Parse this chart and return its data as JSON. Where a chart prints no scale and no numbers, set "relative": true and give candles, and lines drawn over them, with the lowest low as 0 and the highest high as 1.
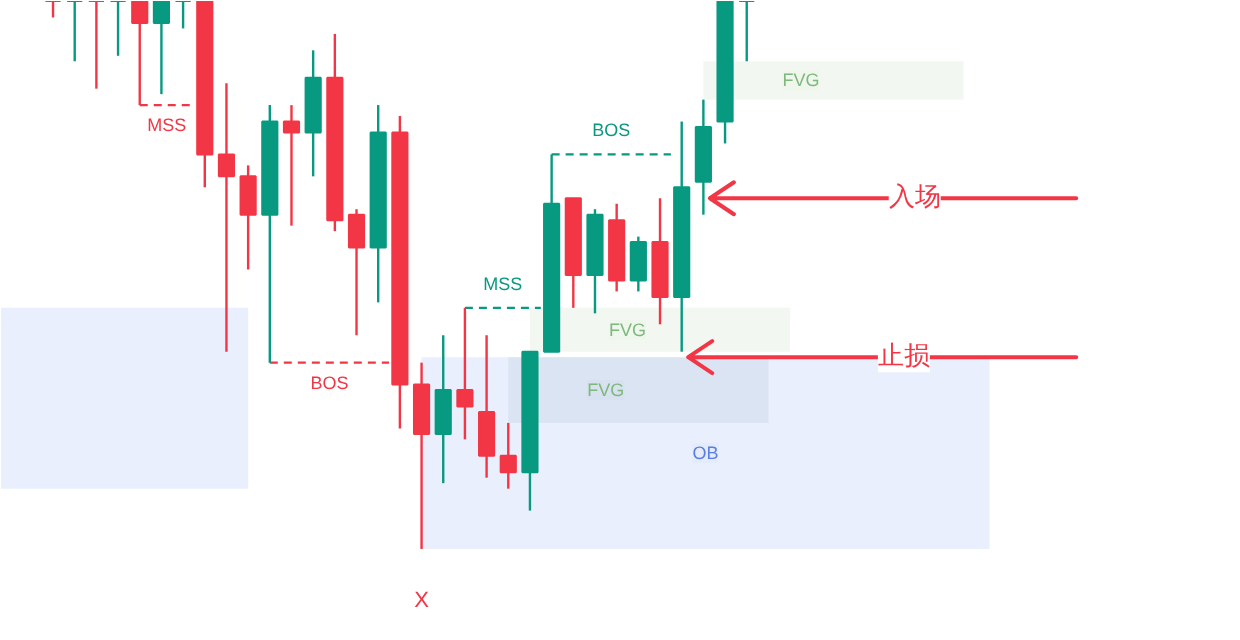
{
  "chart_data": {
    "type": "candlestick",
    "relative": true,
    "grid": false,
    "categories": [
      null,
      null,
      null,
      null,
      null,
      null,
      null,
      null,
      null,
      null,
      null,
      null,
      null,
      null,
      null,
      null,
      null,
      null,
      null,
      null,
      null,
      null,
      null,
      null,
      null,
      null,
      null,
      null,
      null,
      null,
      null,
      null,
      null
    ],
    "ohlc": [
      [
        1,
        1,
        0.97,
        1
      ],
      [
        1,
        1,
        0.89,
        1
      ],
      [
        1,
        1,
        0.84,
        1
      ],
      [
        1,
        1,
        0.9,
        1
      ],
      [
        1,
        1,
        0.81,
        0.96
      ],
      [
        0.96,
        1,
        0.83,
        1
      ],
      [
        1,
        1,
        0.95,
        1
      ],
      [
        1,
        1,
        0.66,
        0.72
      ],
      [
        0.72,
        0.85,
        0.36,
        0.68
      ],
      [
        0.68,
        0.7,
        0.51,
        0.61
      ],
      [
        0.61,
        0.81,
        0.34,
        0.78
      ],
      [
        0.78,
        0.81,
        0.59,
        0.76
      ],
      [
        0.76,
        0.91,
        0.68,
        0.86
      ],
      [
        0.86,
        0.94,
        0.58,
        0.6
      ],
      [
        0.61,
        0.62,
        0.39,
        0.55
      ],
      [
        0.55,
        0.81,
        0.45,
        0.76
      ],
      [
        0.76,
        0.79,
        0.22,
        0.3
      ],
      [
        0.3,
        0.34,
        0,
        0.21
      ],
      [
        0.21,
        0.39,
        0.12,
        0.29
      ],
      [
        0.29,
        0.44,
        0.2,
        0.26
      ],
      [
        0.25,
        0.39,
        0.13,
        0.17
      ],
      [
        0.17,
        0.23,
        0.11,
        0.14
      ],
      [
        0.14,
        0.36,
        0.07,
        0.36
      ],
      [
        0.36,
        0.72,
        0.36,
        0.63
      ],
      [
        0.64,
        0.64,
        0.44,
        0.5
      ],
      [
        0.5,
        0.62,
        0.43,
        0.61
      ],
      [
        0.6,
        0.63,
        0.47,
        0.49
      ],
      [
        0.49,
        0.57,
        0.47,
        0.56
      ],
      [
        0.56,
        0.64,
        0.41,
        0.46
      ],
      [
        0.46,
        0.78,
        0.36,
        0.66
      ],
      [
        0.67,
        0.82,
        0.61,
        0.77
      ],
      [
        0.78,
        1,
        0.74,
        1
      ],
      [
        1,
        1,
        0.89,
        1
      ]
    ],
    "colors": [
      "#f23645",
      "#089981",
      "#f23645",
      "#089981",
      "#f23645",
      "#089981",
      "#089981",
      "#f23645",
      "#f23645",
      "#f23645",
      "#089981",
      "#f23645",
      "#089981",
      "#f23645",
      "#f23645",
      "#089981",
      "#f23645",
      "#f23645",
      "#089981",
      "#f23645",
      "#f23645",
      "#f23645",
      "#089981",
      "#089981",
      "#f23645",
      "#089981",
      "#f23645",
      "#089981",
      "#f23645",
      "#089981",
      "#089981",
      "#089981",
      "#089981"
    ],
    "value_labels": [
      null,
      null,
      null,
      null,
      null,
      null,
      null,
      null,
      null,
      null,
      null,
      null,
      null,
      null,
      null,
      null,
      null,
      "X",
      null,
      null,
      null,
      null,
      null,
      null,
      null,
      null,
      null,
      null,
      null,
      null,
      null,
      null,
      null
    ],
    "bands": [
      {
        "axis": "y",
        "from": 0.11,
        "to": 0.44,
        "label": null,
        "color": "#e3eafc"
      },
      {
        "axis": "y",
        "from": 0,
        "to": 0.35,
        "label": "OB",
        "color": "#e3eafc"
      },
      {
        "axis": "y",
        "from": 0.23,
        "to": 0.35,
        "label": "FVG",
        "color": "#d6e0ee"
      },
      {
        "axis": "y",
        "from": 0.36,
        "to": 0.44,
        "label": "FVG",
        "color": "#eef6ec"
      },
      {
        "axis": "y",
        "from": 0.82,
        "to": 0.89,
        "label": "FVG",
        "color": "#eef6ec"
      }
    ],
    "ref_lines": [
      {
        "axis": "y",
        "value": 0.81,
        "label": "MSS",
        "color": "#f23645",
        "line_style": "dashed"
      },
      {
        "axis": "y",
        "value": 0.34,
        "label": "BOS",
        "color": "#f23645",
        "line_style": "dashed"
      },
      {
        "axis": "y",
        "value": 0.44,
        "label": "MSS",
        "color": "#089981",
        "line_style": "dashed"
      },
      {
        "axis": "y",
        "value": 0.72,
        "label": "BOS",
        "color": "#089981",
        "line_style": "dashed"
      },
      {
        "axis": "y",
        "value": 0.64,
        "label": "入场",
        "color": "#f23645",
        "line_style": "solid"
      },
      {
        "axis": "y",
        "value": 0.35,
        "label": "止损",
        "color": "#f23645",
        "line_style": "solid"
      }
    ]
  }
}
